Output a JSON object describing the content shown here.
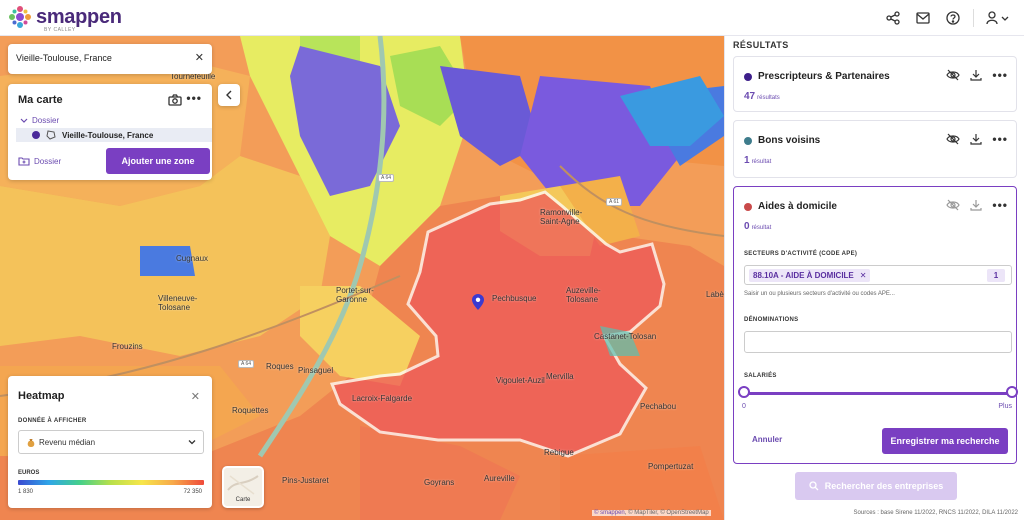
{
  "app": {
    "name": "smappen",
    "sub": "BY CALLEY",
    "colors": {
      "accent": "#7a3fc2",
      "accent_light": "#d9c9f0",
      "accent_text": "#6b4bb0"
    }
  },
  "header": {
    "icons": [
      "share-icon",
      "mail-icon",
      "help-icon",
      "user-icon",
      "chevron-down-icon"
    ]
  },
  "map": {
    "search": {
      "value": "Vieille-Toulouse, France",
      "close": "✕"
    },
    "my_map": {
      "title": "Ma carte",
      "more": "•••",
      "folder": "Dossier",
      "zone": {
        "name": "Vieille-Toulouse, France",
        "color": "#4a2a9a"
      },
      "dossier_button": "Dossier",
      "add_zone_button": "Ajouter une zone"
    },
    "heatmap": {
      "title": "Heatmap",
      "close": "✕",
      "data_label": "DONNÉE À AFFICHER",
      "selected": "Revenu médian",
      "unit_label": "EUROS",
      "min": "1 830",
      "max": "72 350"
    },
    "carte_label": "Carte",
    "places": [
      {
        "name": "Tournefeuille"
      },
      {
        "name": "Cugnaux"
      },
      {
        "name": "Villeneuve-\nTolosane"
      },
      {
        "name": "Portet-sur-\nGaronne"
      },
      {
        "name": "Frouzins"
      },
      {
        "name": "Roques"
      },
      {
        "name": "Pinsaguel"
      },
      {
        "name": "Roquettes"
      },
      {
        "name": "Pins-Justaret"
      },
      {
        "name": "Goyrans"
      },
      {
        "name": "Aureville"
      },
      {
        "name": "Rebigue"
      },
      {
        "name": "Lacroix-Falgarde"
      },
      {
        "name": "Vigoulet-Auzil"
      },
      {
        "name": "Mervilla"
      },
      {
        "name": "Pechbusque"
      },
      {
        "name": "Ramonville-\nSaint-Agne"
      },
      {
        "name": "Auzeville-\nTolosane"
      },
      {
        "name": "Castanet-Tolosan"
      },
      {
        "name": "Pechabou"
      },
      {
        "name": "Pompertuzat"
      },
      {
        "name": "Labè"
      }
    ],
    "sources": {
      "brand": "© smappen",
      "rest": ", © MapTiler, © OpenStreetMap"
    }
  },
  "results": {
    "title": "RÉSULTATS",
    "cards": [
      {
        "title": "Prescripteurs & Partenaires",
        "count": "47",
        "count_label": "résultats",
        "color": "#3d1f8a"
      },
      {
        "title": "Bons voisins",
        "count": "1",
        "count_label": "résultat",
        "color": "#3e7c8c"
      },
      {
        "title": "Aides à domicile",
        "count": "0",
        "count_label": "résultat",
        "color": "#c94a4a"
      }
    ],
    "form": {
      "sectors_label": "SECTEURS D'ACTIVITÉ (CODE APE)",
      "ape_chip": "88.10A - AIDE À DOMICILE",
      "ape_chip_remove": "✕",
      "ape_count": "1",
      "helper": "Saisir un ou plusieurs secteurs d'activité ou codes APE...",
      "denominations_label": "DÉNOMINATIONS",
      "denominations_value": "",
      "salaries_label": "SALARIÉS",
      "slider_min": "0",
      "slider_max": "Plus",
      "cancel": "Annuler",
      "save": "Enregistrer ma recherche"
    },
    "search_button": "Rechercher des entreprises",
    "sources": "Sources : base Sirene 11/2022, RNCS 11/2022, DILA 11/2022"
  }
}
